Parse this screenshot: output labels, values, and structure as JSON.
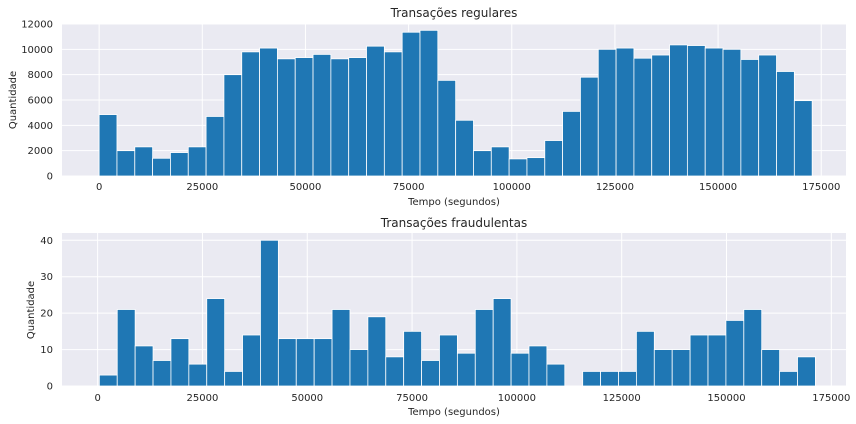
{
  "figure": {
    "background": "#ffffff",
    "axes_facecolor": "#eaeaf2",
    "grid_color": "#ffffff",
    "bar_color": "#1f77b4",
    "bar_edge_color": "#ffffff"
  },
  "chart_data": [
    {
      "type": "bar",
      "title": "Transações regulares",
      "xlabel": "Tempo (segundos)",
      "ylabel": "Quantidade",
      "bin_start": 0,
      "bin_width": 4320,
      "values": [
        4850,
        2000,
        2300,
        1400,
        1850,
        2300,
        4700,
        8000,
        9800,
        10100,
        9250,
        9350,
        9600,
        9250,
        9350,
        10250,
        9800,
        11350,
        11500,
        7550,
        4400,
        2000,
        2300,
        1350,
        1450,
        2800,
        5100,
        7800,
        10000,
        10100,
        9300,
        9550,
        10350,
        10300,
        10100,
        10000,
        9200,
        9550,
        8250,
        5950
      ],
      "xlim": [
        -9000,
        181000
      ],
      "ylim": [
        0,
        12000
      ],
      "xticks": [
        0,
        25000,
        50000,
        75000,
        100000,
        125000,
        150000,
        175000
      ],
      "yticks": [
        0,
        2000,
        4000,
        6000,
        8000,
        10000,
        12000
      ],
      "grid": true
    },
    {
      "type": "bar",
      "title": "Transações fraudulentas",
      "xlabel": "Tempo (segundos)",
      "ylabel": "Quantidade",
      "bin_start": 406,
      "bin_width": 4270,
      "values": [
        3,
        21,
        11,
        7,
        13,
        6,
        24,
        4,
        14,
        40,
        13,
        13,
        13,
        21,
        10,
        19,
        8,
        15,
        7,
        14,
        9,
        21,
        24,
        9,
        11,
        6,
        0,
        4,
        4,
        4,
        15,
        10,
        10,
        14,
        14,
        18,
        21,
        10,
        4,
        8
      ],
      "xlim": [
        -8500,
        178500
      ],
      "ylim": [
        0,
        42
      ],
      "xticks": [
        0,
        25000,
        50000,
        75000,
        100000,
        125000,
        150000,
        175000
      ],
      "yticks": [
        0,
        10,
        20,
        30,
        40
      ],
      "grid": true
    }
  ]
}
